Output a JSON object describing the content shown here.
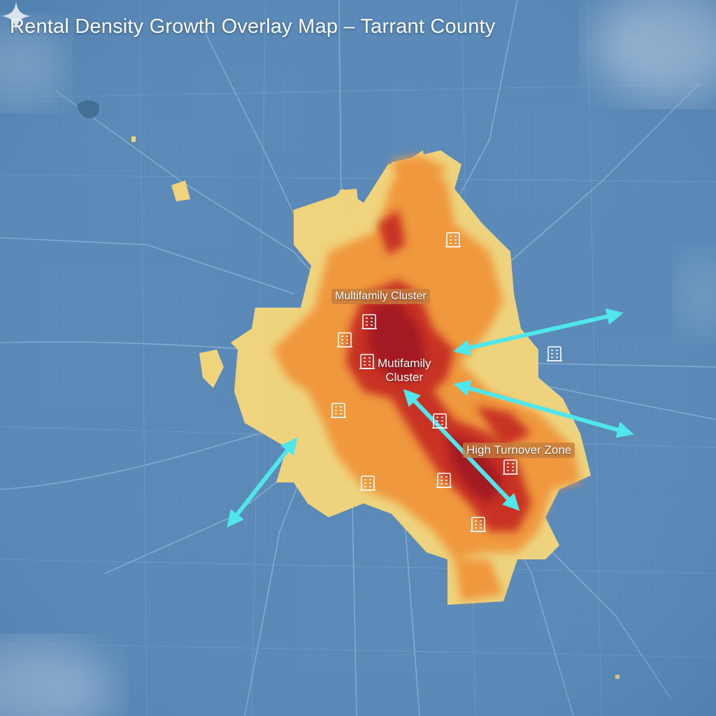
{
  "title": "Rental Density Growth Overlay Map – Tarrant County",
  "callouts": {
    "cluster_top": "Multifamily Cluster",
    "cluster_center_line1": "Mutifamily",
    "cluster_center_line2": "Cluster",
    "turnover": "High Turnover Zone"
  },
  "colors": {
    "water_base": "#5b8ab8",
    "density_low": "#f7d77a",
    "density_mid": "#f0953a",
    "density_high": "#c42a22",
    "arrow": "#4fe6ec",
    "road": "#8fb3d6"
  },
  "icons": [
    "building-icon",
    "growth-arrow",
    "sparkle-icon"
  ]
}
